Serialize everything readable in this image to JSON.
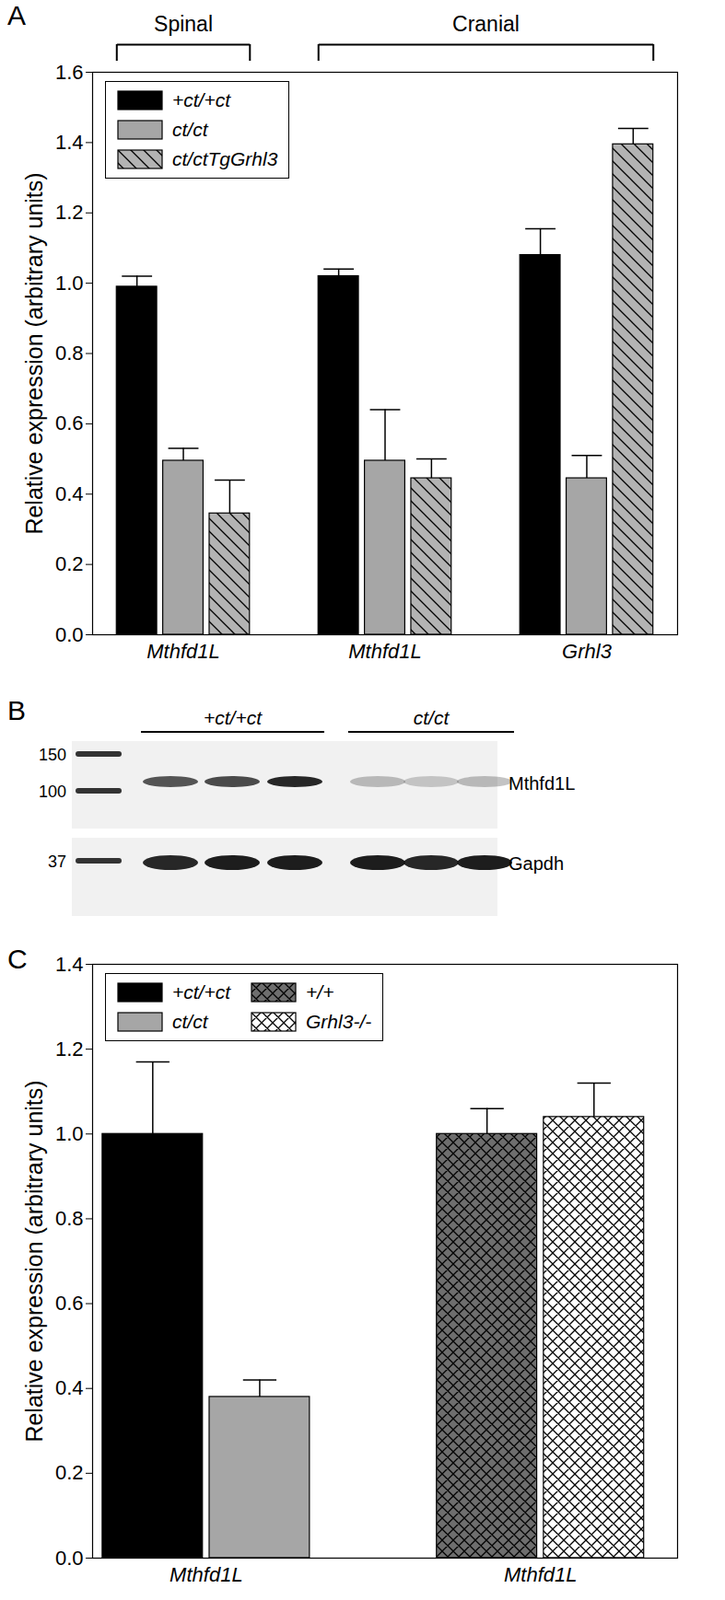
{
  "chart_data": [
    {
      "type": "bar",
      "panel": "A",
      "y_label": "Relative expression (arbitrary units)",
      "categories": [
        "Mthfd1L",
        "Mthfd1L",
        "Grhl3"
      ],
      "annotations": [
        {
          "text": "Spinal",
          "categories": [
            0,
            0
          ]
        },
        {
          "text": "Cranial",
          "categories": [
            1,
            2
          ]
        }
      ],
      "series": [
        {
          "name": "+ct/+ct",
          "color": "#000000",
          "values": [
            0.99,
            1.02,
            1.08
          ],
          "errors": [
            0.03,
            0.02,
            0.075
          ]
        },
        {
          "name": "ct/ct",
          "color": "#a6a6a6",
          "values": [
            0.495,
            0.495,
            0.445
          ],
          "errors": [
            0.035,
            0.145,
            0.065
          ]
        },
        {
          "name": "ct/ctTgGrhl3",
          "color": "#b3b3b3",
          "marker": "diagonal",
          "values": [
            0.345,
            0.445,
            1.395
          ],
          "errors": [
            0.095,
            0.055,
            0.045
          ]
        }
      ],
      "ylim": [
        0,
        1.6
      ],
      "yticks": [
        {
          "value": 0,
          "label": "0.0"
        },
        {
          "value": 0.2,
          "label": "0.2"
        },
        {
          "value": 0.4,
          "label": "0.4"
        },
        {
          "value": 0.6,
          "label": "0.6"
        },
        {
          "value": 0.8,
          "label": "0.8"
        },
        {
          "value": 1,
          "label": "1.0"
        },
        {
          "value": 1.2,
          "label": "1.2"
        },
        {
          "value": 1.4,
          "label": "1.4"
        },
        {
          "value": 1.6,
          "label": "1.6"
        }
      ],
      "legend": "upper left"
    },
    {
      "type": "bar",
      "panel": "C",
      "y_label": "Relative expression (arbitrary units)",
      "categories": [
        "Mthfd1L",
        "Mthfd1L"
      ],
      "series": [
        {
          "name": "+ct/+ct",
          "color": "#000000",
          "values": [
            1.0,
            null
          ],
          "errors": [
            0.17,
            null
          ]
        },
        {
          "name": "ct/ct",
          "color": "#a6a6a6",
          "values": [
            0.38,
            null
          ],
          "errors": [
            0.04,
            null
          ]
        },
        {
          "name": "+/+",
          "color": "#6e6e6e",
          "marker": "crosshatch",
          "values": [
            null,
            1.0
          ],
          "errors": [
            null,
            0.06
          ]
        },
        {
          "name": "Grhl3-/-",
          "color": "#ffffff",
          "marker": "crosshatch",
          "values": [
            null,
            1.04
          ],
          "errors": [
            null,
            0.08
          ]
        }
      ],
      "ylim": [
        0,
        1.4
      ],
      "yticks": [
        {
          "value": 0,
          "label": "0.0"
        },
        {
          "value": 0.2,
          "label": "0.2"
        },
        {
          "value": 0.4,
          "label": "0.4"
        },
        {
          "value": 0.6,
          "label": "0.6"
        },
        {
          "value": 0.8,
          "label": "0.8"
        },
        {
          "value": 1,
          "label": "1.0"
        },
        {
          "value": 1.2,
          "label": "1.2"
        },
        {
          "value": 1.4,
          "label": "1.4"
        }
      ],
      "legend": "upper left"
    }
  ],
  "blot": {
    "panel": "B",
    "groups": [
      {
        "label": "+ct/+ct",
        "lanes": 3
      },
      {
        "label": "ct/ct",
        "lanes": 3
      }
    ],
    "strips": [
      {
        "label": "Mthfd1L",
        "markers": [
          150,
          100
        ],
        "intensity": [
          0.7,
          0.75,
          0.9,
          0.25,
          0.2,
          0.25
        ]
      },
      {
        "label": "Gapdh",
        "markers": [
          37
        ],
        "intensity": [
          0.9,
          0.95,
          0.95,
          0.95,
          0.9,
          0.95
        ]
      }
    ]
  }
}
